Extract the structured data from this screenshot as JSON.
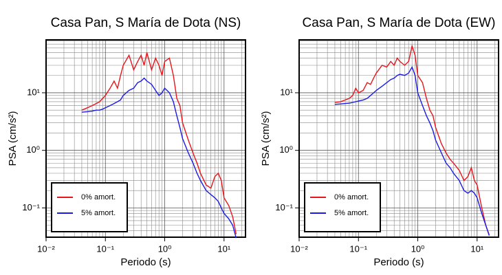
{
  "chart_data": [
    {
      "type": "line",
      "title": "Casa Pan, S María de Dota (NS)",
      "x_label": "Periodo (s)",
      "y_label": "PSA (cm/s²)",
      "x_log": true,
      "y_log": true,
      "grid": true,
      "legend": "lower left",
      "xlim": [
        0.01,
        23
      ],
      "ylim": [
        0.031,
        83
      ],
      "xticks": [
        {
          "value": 0.01,
          "label": "10⁻²"
        },
        {
          "value": 0.1,
          "label": "10⁻¹"
        },
        {
          "value": 1,
          "label": "10⁰"
        },
        {
          "value": 10,
          "label": "10¹"
        }
      ],
      "yticks": [
        {
          "value": 0.1,
          "label": "10⁻¹"
        },
        {
          "value": 1,
          "label": "10⁰"
        },
        {
          "value": 10,
          "label": "10¹"
        }
      ],
      "minor_xticks": [
        0.02,
        0.03,
        0.04,
        0.05,
        0.06,
        0.07,
        0.08,
        0.09,
        0.2,
        0.3,
        0.4,
        0.5,
        0.6,
        0.7,
        0.8,
        0.9,
        2,
        3,
        4,
        5,
        6,
        7,
        8,
        9,
        20
      ],
      "minor_yticks": [
        0.04,
        0.05,
        0.06,
        0.07,
        0.08,
        0.09,
        0.2,
        0.3,
        0.4,
        0.5,
        0.6,
        0.7,
        0.8,
        0.9,
        2,
        3,
        4,
        5,
        6,
        7,
        8,
        9,
        20,
        30,
        40,
        50,
        60,
        70,
        80
      ],
      "x": [
        0.04,
        0.05,
        0.06,
        0.07,
        0.08,
        0.09,
        0.1,
        0.12,
        0.14,
        0.16,
        0.18,
        0.2,
        0.25,
        0.3,
        0.35,
        0.4,
        0.45,
        0.5,
        0.6,
        0.7,
        0.8,
        0.9,
        1.0,
        1.2,
        1.4,
        1.6,
        1.8,
        2,
        2.5,
        3,
        3.5,
        4,
        5,
        6,
        7,
        8,
        9,
        10,
        12,
        14,
        16
      ],
      "series": [
        {
          "name": "0% amort.",
          "color": "#e8141b",
          "values": [
            5,
            5.5,
            6,
            6.5,
            7,
            8,
            9,
            12,
            16,
            12,
            20,
            30,
            45,
            25,
            35,
            45,
            30,
            50,
            25,
            40,
            30,
            20,
            35,
            40,
            20,
            8,
            6,
            3,
            1.5,
            0.9,
            0.6,
            0.4,
            0.25,
            0.22,
            0.35,
            0.4,
            0.3,
            0.15,
            0.11,
            0.07,
            0.035
          ]
        },
        {
          "name": "5% amort.",
          "color": "#1a1ae6",
          "values": [
            4.6,
            4.7,
            4.8,
            5,
            5,
            5.2,
            5.5,
            6,
            6.5,
            7,
            7.5,
            9,
            11,
            12,
            15,
            16,
            18,
            16,
            14,
            11,
            9,
            10,
            12,
            10,
            7,
            4,
            2.5,
            1.6,
            0.9,
            0.6,
            0.4,
            0.3,
            0.2,
            0.17,
            0.15,
            0.13,
            0.1,
            0.08,
            0.065,
            0.05,
            0.03
          ]
        }
      ]
    },
    {
      "type": "line",
      "title": "Casa Pan, S María de Dota (EW)",
      "x_label": "Periodo (s)",
      "y_label": "PSA (cm/s²)",
      "x_log": true,
      "y_log": true,
      "grid": true,
      "legend": "lower left",
      "xlim": [
        0.01,
        23
      ],
      "ylim": [
        0.031,
        83
      ],
      "xticks": [
        {
          "value": 0.01,
          "label": "10⁻²"
        },
        {
          "value": 0.1,
          "label": "10⁻¹"
        },
        {
          "value": 1,
          "label": "10⁰"
        },
        {
          "value": 10,
          "label": "10¹"
        }
      ],
      "yticks": [
        {
          "value": 0.1,
          "label": "10⁻¹"
        },
        {
          "value": 1,
          "label": "10⁰"
        },
        {
          "value": 10,
          "label": "10¹"
        }
      ],
      "minor_xticks": [
        0.02,
        0.03,
        0.04,
        0.05,
        0.06,
        0.07,
        0.08,
        0.09,
        0.2,
        0.3,
        0.4,
        0.5,
        0.6,
        0.7,
        0.8,
        0.9,
        2,
        3,
        4,
        5,
        6,
        7,
        8,
        9,
        20
      ],
      "minor_yticks": [
        0.04,
        0.05,
        0.06,
        0.07,
        0.08,
        0.09,
        0.2,
        0.3,
        0.4,
        0.5,
        0.6,
        0.7,
        0.8,
        0.9,
        2,
        3,
        4,
        5,
        6,
        7,
        8,
        9,
        20,
        30,
        40,
        50,
        60,
        70,
        80
      ],
      "x": [
        0.04,
        0.05,
        0.06,
        0.07,
        0.08,
        0.09,
        0.1,
        0.12,
        0.14,
        0.16,
        0.18,
        0.2,
        0.25,
        0.3,
        0.35,
        0.4,
        0.45,
        0.5,
        0.6,
        0.7,
        0.8,
        0.9,
        1.0,
        1.2,
        1.4,
        1.6,
        1.8,
        2,
        2.5,
        3,
        3.5,
        4,
        5,
        6,
        7,
        8,
        9,
        10,
        12,
        14,
        16
      ],
      "series": [
        {
          "name": "0% amort.",
          "color": "#e8141b",
          "values": [
            6.8,
            7,
            7.5,
            8,
            9,
            12,
            10,
            11,
            15,
            14,
            18,
            22,
            30,
            28,
            35,
            30,
            40,
            35,
            30,
            35,
            65,
            45,
            20,
            15,
            8,
            5,
            4,
            2.5,
            1.3,
            0.9,
            0.7,
            0.6,
            0.45,
            0.3,
            0.35,
            0.5,
            0.3,
            0.25,
            0.1,
            0.05,
            0.034
          ]
        },
        {
          "name": "5% amort.",
          "color": "#1a1ae6",
          "values": [
            6.3,
            6.4,
            6.5,
            6.6,
            6.8,
            7,
            7.2,
            7.5,
            8,
            9,
            10,
            11,
            13,
            15,
            17,
            18,
            20,
            21,
            20,
            22,
            28,
            20,
            10,
            6,
            4,
            3,
            2.2,
            1.5,
            0.9,
            0.6,
            0.5,
            0.4,
            0.3,
            0.2,
            0.18,
            0.2,
            0.18,
            0.15,
            0.08,
            0.05,
            0.033
          ]
        }
      ]
    }
  ]
}
